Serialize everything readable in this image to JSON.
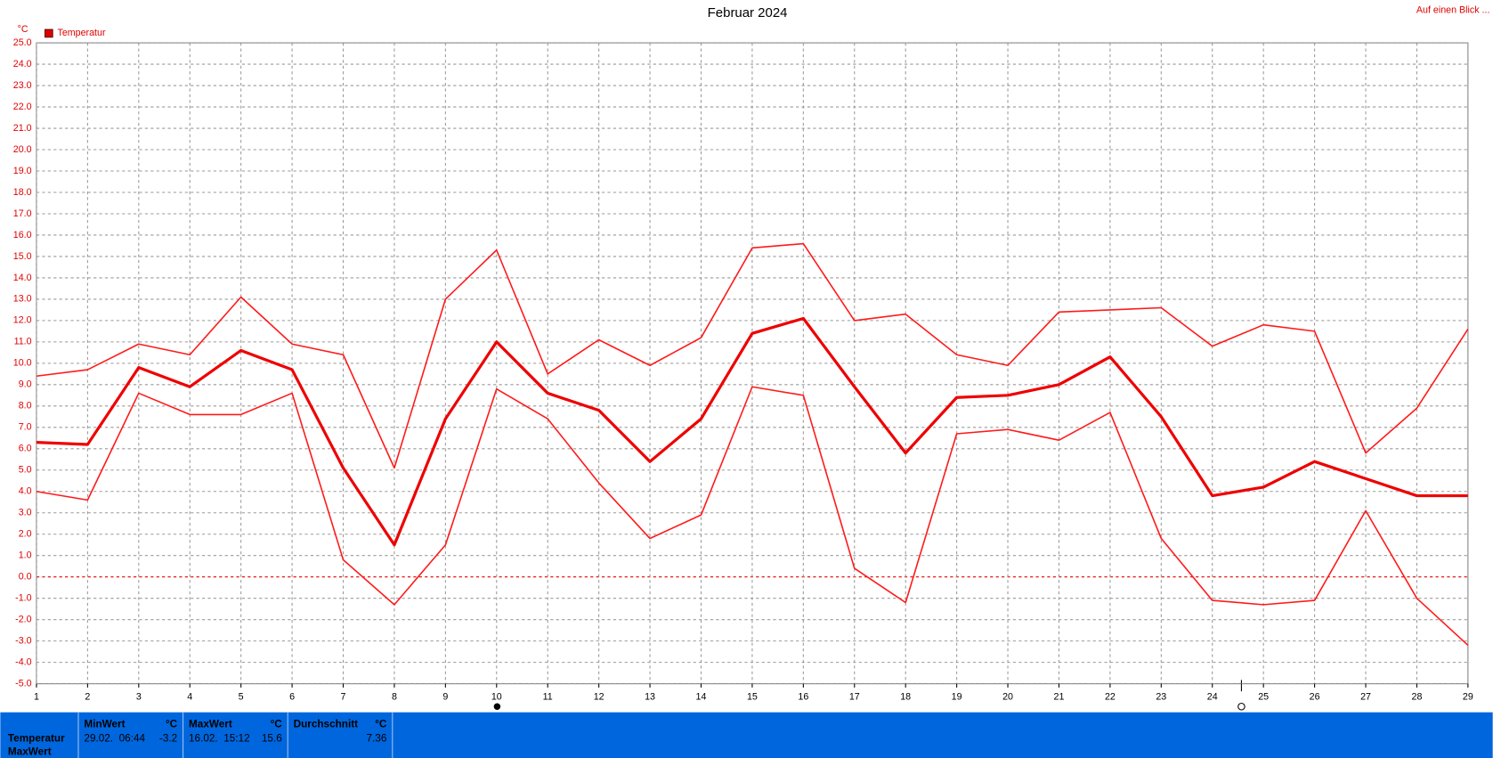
{
  "chart_data": {
    "type": "line",
    "title": "Februar 2024",
    "y_unit": "°C",
    "legend": "Temperatur",
    "legend_color": "#e00000",
    "x": [
      1,
      2,
      3,
      4,
      5,
      6,
      7,
      8,
      9,
      10,
      11,
      12,
      13,
      14,
      15,
      16,
      17,
      18,
      19,
      20,
      21,
      22,
      23,
      24,
      25,
      26,
      27,
      28,
      29
    ],
    "xlim": [
      1,
      29
    ],
    "xticks": [
      1,
      2,
      3,
      4,
      5,
      6,
      7,
      8,
      9,
      10,
      11,
      12,
      13,
      14,
      15,
      16,
      17,
      18,
      19,
      20,
      21,
      22,
      23,
      24,
      25,
      26,
      27,
      28,
      29
    ],
    "ylim": [
      -5,
      25
    ],
    "yticks": [
      {
        "value": -5,
        "label": "-5.0"
      },
      {
        "value": -4,
        "label": "-4.0"
      },
      {
        "value": -3,
        "label": "-3.0"
      },
      {
        "value": -2,
        "label": "-2.0"
      },
      {
        "value": -1,
        "label": "-1.0"
      },
      {
        "value": 0,
        "label": "0.0"
      },
      {
        "value": 1,
        "label": "1.0"
      },
      {
        "value": 2,
        "label": "2.0"
      },
      {
        "value": 3,
        "label": "3.0"
      },
      {
        "value": 4,
        "label": "4.0"
      },
      {
        "value": 5,
        "label": "5.0"
      },
      {
        "value": 6,
        "label": "6.0"
      },
      {
        "value": 7,
        "label": "7.0"
      },
      {
        "value": 8,
        "label": "8.0"
      },
      {
        "value": 9,
        "label": "9.0"
      },
      {
        "value": 10,
        "label": "10.0"
      },
      {
        "value": 11,
        "label": "11.0"
      },
      {
        "value": 12,
        "label": "12.0"
      },
      {
        "value": 13,
        "label": "13.0"
      },
      {
        "value": 14,
        "label": "14.0"
      },
      {
        "value": 15,
        "label": "15.0"
      },
      {
        "value": 16,
        "label": "16.0"
      },
      {
        "value": 17,
        "label": "17.0"
      },
      {
        "value": 18,
        "label": "18.0"
      },
      {
        "value": 19,
        "label": "19.0"
      },
      {
        "value": 20,
        "label": "20.0"
      },
      {
        "value": 21,
        "label": "21.0"
      },
      {
        "value": 22,
        "label": "22.0"
      },
      {
        "value": 23,
        "label": "23.0"
      },
      {
        "value": 24,
        "label": "24.0"
      },
      {
        "value": 25,
        "label": "25.0"
      }
    ],
    "grid": true,
    "series": [
      {
        "color": "#ff1a1a",
        "width": 1.5,
        "values": [
          9.4,
          9.7,
          10.9,
          10.4,
          13.1,
          10.9,
          10.4,
          5.1,
          13.0,
          15.3,
          9.5,
          11.1,
          9.9,
          11.2,
          15.4,
          15.6,
          12.0,
          12.3,
          10.4,
          9.9,
          12.4,
          12.5,
          12.6,
          10.8,
          11.8,
          11.5,
          5.8,
          7.9,
          11.6
        ]
      },
      {
        "color": "#ee0000",
        "width": 3,
        "values": [
          6.3,
          6.2,
          9.8,
          8.9,
          10.6,
          9.7,
          5.1,
          1.5,
          7.4,
          11.0,
          8.6,
          7.8,
          5.4,
          7.4,
          11.4,
          12.1,
          8.9,
          5.8,
          8.4,
          8.5,
          9.0,
          10.3,
          7.5,
          3.8,
          4.2,
          5.4,
          4.6,
          3.8,
          3.8
        ]
      },
      {
        "color": "#ff1a1a",
        "width": 1.5,
        "values": [
          4.0,
          3.6,
          8.6,
          7.6,
          7.6,
          8.6,
          0.8,
          -1.3,
          1.5,
          8.8,
          7.4,
          4.4,
          1.8,
          2.9,
          8.9,
          8.5,
          0.4,
          -1.2,
          6.7,
          6.9,
          6.4,
          7.7,
          1.8,
          -1.1,
          -1.3,
          -1.1,
          3.1,
          -1.0,
          -3.2
        ]
      }
    ]
  },
  "link": "Auf einen Blick ...",
  "stats_panel": {
    "row_labels": [
      "Temperatur",
      "MaxWert"
    ],
    "columns": [
      {
        "header": "MinWert",
        "unit": "°C",
        "time": "29.02.  06:44",
        "value": -3.2
      },
      {
        "header": "MaxWert",
        "unit": "°C",
        "time": "16.02.  15:12",
        "value": 15.6
      },
      {
        "header": "Durchschnitt",
        "unit": "°C",
        "value": 7.36
      }
    ]
  }
}
